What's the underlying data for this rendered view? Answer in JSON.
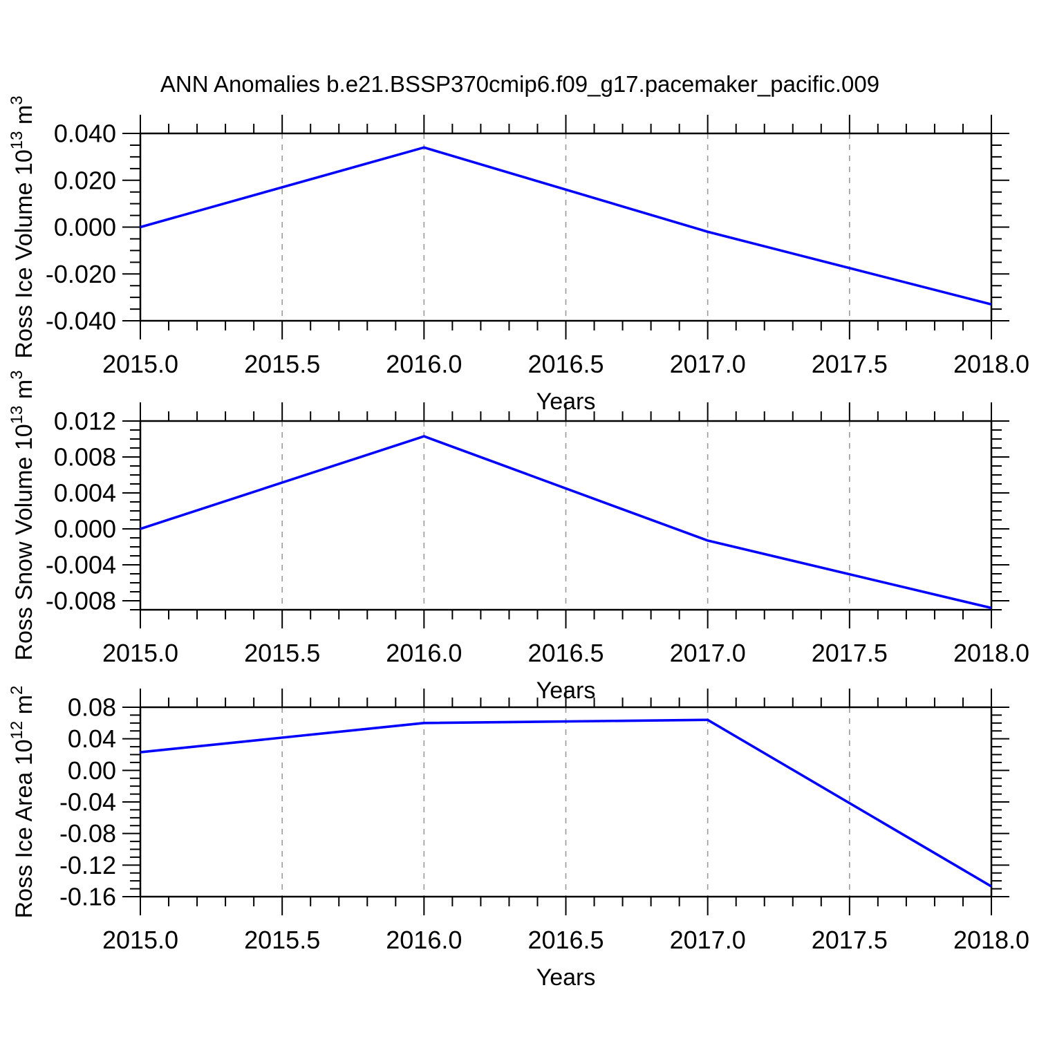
{
  "title": "ANN Anomalies b.e21.BSSP370cmip6.f09_g17.pacemaker_pacific.009",
  "colors": {
    "line": "#0000ff",
    "frame": "#000000",
    "grid": "#999999",
    "text": "#000000",
    "background": "#ffffff"
  },
  "chart_data": [
    {
      "type": "line",
      "name": "ross-ice-volume",
      "ylabel": "Ross Ice Volume 10^13 m^3",
      "ylabel_parts": [
        {
          "t": "Ross Ice Volume 10",
          "sup": false
        },
        {
          "t": "13",
          "sup": true
        },
        {
          "t": " m",
          "sup": false
        },
        {
          "t": "3",
          "sup": true
        }
      ],
      "xlabel": "Years",
      "x": [
        2015,
        2016,
        2017,
        2018
      ],
      "values": [
        0.0,
        0.034,
        -0.002,
        -0.033
      ],
      "xlim": [
        2015.0,
        2018.0
      ],
      "ylim": [
        -0.04,
        0.04
      ],
      "x_major_ticks": [
        2015.0,
        2015.5,
        2016.0,
        2016.5,
        2017.0,
        2017.5,
        2018.0
      ],
      "x_tick_labels": [
        "2015.0",
        "2015.5",
        "2016.0",
        "2016.5",
        "2017.0",
        "2017.5",
        "2018.0"
      ],
      "x_minor_step": 0.1,
      "y_major_ticks": [
        0.04,
        0.02,
        0.0,
        -0.02,
        -0.04
      ],
      "y_tick_labels": [
        "0.040",
        "0.020",
        "0.000",
        "-0.020",
        "-0.040"
      ],
      "y_minor_step": 0.005,
      "grid_x": [
        2015.5,
        2016.0,
        2016.5,
        2017.0,
        2017.5
      ],
      "grid_style": "vertical-dashed",
      "legend": "none"
    },
    {
      "type": "line",
      "name": "ross-snow-volume",
      "ylabel": "Ross Snow Volume 10^13 m^3",
      "ylabel_parts": [
        {
          "t": "Ross Snow Volume 10",
          "sup": false
        },
        {
          "t": "13",
          "sup": true
        },
        {
          "t": " m",
          "sup": false
        },
        {
          "t": "3",
          "sup": true
        }
      ],
      "xlabel": "Years",
      "x": [
        2015,
        2016,
        2017,
        2018
      ],
      "values": [
        0.0,
        0.0103,
        -0.0013,
        -0.0088
      ],
      "xlim": [
        2015.0,
        2018.0
      ],
      "ylim": [
        -0.009,
        0.012
      ],
      "x_major_ticks": [
        2015.0,
        2015.5,
        2016.0,
        2016.5,
        2017.0,
        2017.5,
        2018.0
      ],
      "x_tick_labels": [
        "2015.0",
        "2015.5",
        "2016.0",
        "2016.5",
        "2017.0",
        "2017.5",
        "2018.0"
      ],
      "x_minor_step": 0.1,
      "y_major_ticks": [
        0.012,
        0.008,
        0.004,
        0.0,
        -0.004,
        -0.008
      ],
      "y_tick_labels": [
        "0.012",
        "0.008",
        "0.004",
        "0.000",
        "-0.004",
        "-0.008"
      ],
      "y_minor_step": 0.001,
      "grid_x": [
        2015.5,
        2016.0,
        2016.5,
        2017.0,
        2017.5
      ],
      "grid_style": "vertical-dashed",
      "legend": "none"
    },
    {
      "type": "line",
      "name": "ross-ice-area",
      "ylabel": "Ross Ice Area 10^12 m^2",
      "ylabel_parts": [
        {
          "t": "Ross Ice Area 10",
          "sup": false
        },
        {
          "t": "12",
          "sup": true
        },
        {
          "t": " m",
          "sup": false
        },
        {
          "t": "2",
          "sup": true
        }
      ],
      "xlabel": "Years",
      "x": [
        2015,
        2016,
        2017,
        2018
      ],
      "values": [
        0.023,
        0.06,
        0.064,
        -0.147
      ],
      "xlim": [
        2015.0,
        2018.0
      ],
      "ylim": [
        -0.16,
        0.08
      ],
      "x_major_ticks": [
        2015.0,
        2015.5,
        2016.0,
        2016.5,
        2017.0,
        2017.5,
        2018.0
      ],
      "x_tick_labels": [
        "2015.0",
        "2015.5",
        "2016.0",
        "2016.5",
        "2017.0",
        "2017.5",
        "2018.0"
      ],
      "x_minor_step": 0.1,
      "y_major_ticks": [
        0.08,
        0.04,
        0.0,
        -0.04,
        -0.08,
        -0.12,
        -0.16
      ],
      "y_tick_labels": [
        "0.08",
        "0.04",
        "0.00",
        "-0.04",
        "-0.08",
        "-0.12",
        "-0.16"
      ],
      "y_minor_step": 0.01,
      "grid_x": [
        2015.5,
        2016.0,
        2016.5,
        2017.0,
        2017.5
      ],
      "grid_style": "vertical-dashed",
      "legend": "none"
    }
  ]
}
